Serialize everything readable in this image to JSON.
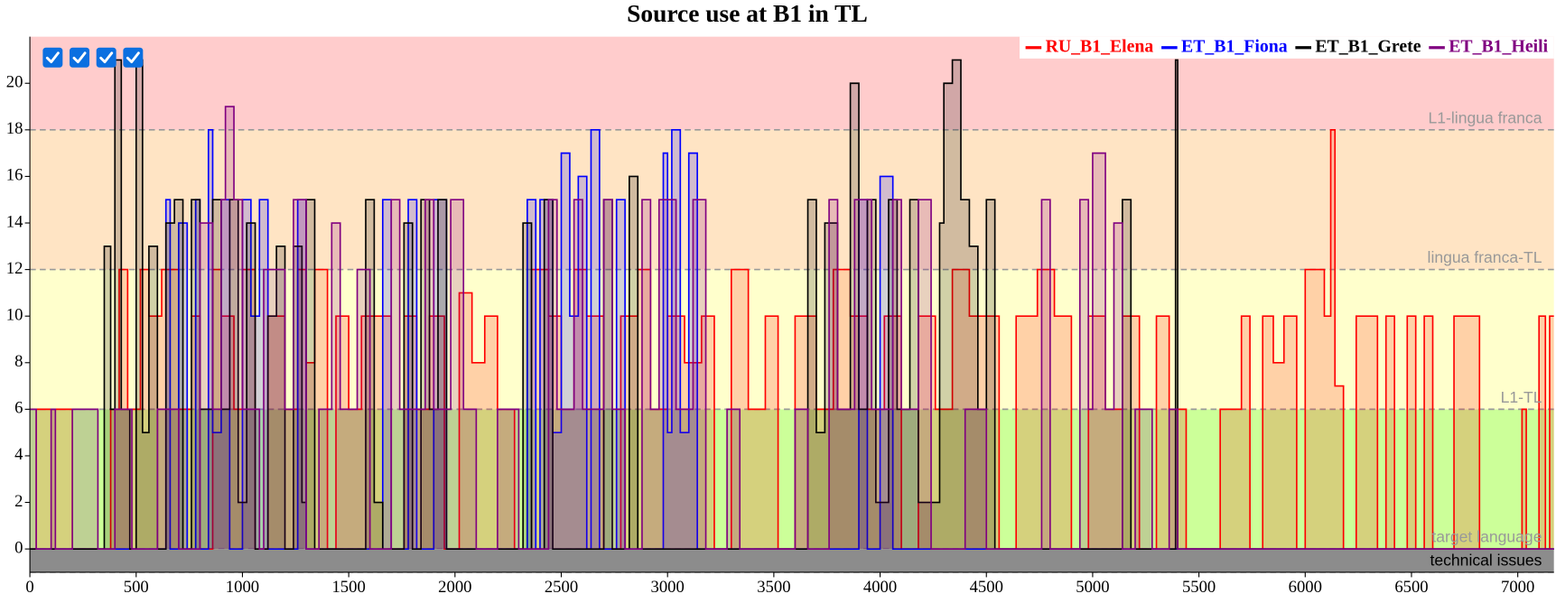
{
  "chart_data": {
    "type": "step",
    "title": "Source use at B1 in TL",
    "xlim": [
      0,
      7170
    ],
    "xticks": [
      0,
      500,
      1000,
      1500,
      2000,
      2500,
      3000,
      3500,
      4000,
      4500,
      5000,
      5500,
      6000,
      6500,
      7000
    ],
    "ylim": [
      -1,
      22
    ],
    "yticks": [
      0,
      2,
      4,
      6,
      8,
      10,
      12,
      14,
      16,
      18,
      20
    ],
    "legend": "upper right",
    "fill_opacity": 0.18,
    "bands": [
      {
        "label": "technical issues",
        "from": -1,
        "to": 0,
        "color": "#8c8c8c",
        "label_color": "#000000"
      },
      {
        "label": "target language",
        "from": 0,
        "to": 6,
        "color": "#ccff99",
        "label_color": "#999999"
      },
      {
        "label": "L1-TL",
        "from": 6,
        "to": 12,
        "color": "#ffffcc",
        "label_color": "#999999"
      },
      {
        "label": "lingua franca-TL",
        "from": 12,
        "to": 18,
        "color": "#ffe4c4",
        "label_color": "#999999"
      },
      {
        "label": "L1-lingua franca",
        "from": 18,
        "to": 22,
        "color": "#ffcccc",
        "label_color": "#999999"
      }
    ],
    "series": [
      {
        "name": "RU_B1_Elena",
        "color": "#ff0000",
        "x": [
          0,
          30,
          200,
          380,
          420,
          460,
          520,
          560,
          620,
          700,
          760,
          800,
          860,
          900,
          960,
          1000,
          1060,
          1120,
          1200,
          1260,
          1300,
          1340,
          1400,
          1440,
          1500,
          1560,
          1700,
          1760,
          1820,
          1880,
          1950,
          2020,
          2080,
          2140,
          2200,
          2280,
          2360,
          2440,
          2500,
          2560,
          2620,
          2700,
          2780,
          2860,
          2920,
          3000,
          3080,
          3160,
          3220,
          3300,
          3380,
          3460,
          3520,
          3600,
          3700,
          3780,
          3860,
          3940,
          4020,
          4100,
          4180,
          4260,
          4340,
          4420,
          4560,
          4640,
          4740,
          4820,
          4900,
          4980,
          5060,
          5140,
          5220,
          5300,
          5360,
          5440,
          5600,
          5700,
          5740,
          5800,
          5850,
          5900,
          5960,
          6000,
          6090,
          6120,
          6140,
          6180,
          6240,
          6340,
          6380,
          6420,
          6480,
          6520,
          6560,
          6600,
          6700,
          6820,
          7020,
          7040,
          7100,
          7130,
          7150
        ],
        "values": [
          0,
          6,
          0,
          6,
          12,
          6,
          12,
          10,
          12,
          6,
          10,
          0,
          12,
          10,
          6,
          12,
          0,
          10,
          6,
          12,
          8,
          12,
          0,
          10,
          6,
          10,
          0,
          10,
          6,
          10,
          0,
          11,
          8,
          10,
          6,
          0,
          12,
          10,
          6,
          12,
          10,
          0,
          10,
          12,
          6,
          10,
          8,
          10,
          0,
          12,
          6,
          10,
          0,
          10,
          6,
          12,
          10,
          6,
          10,
          0,
          10,
          6,
          12,
          10,
          0,
          10,
          12,
          10,
          0,
          10,
          6,
          10,
          0,
          10,
          6,
          0,
          6,
          10,
          0,
          10,
          8,
          10,
          0,
          12,
          10,
          18,
          7,
          0,
          10,
          0,
          10,
          0,
          10,
          0,
          10,
          0,
          10,
          0,
          6,
          0,
          10,
          0,
          10
        ]
      },
      {
        "name": "ET_B1_Fiona",
        "color": "#0000ff",
        "x": [
          0,
          640,
          660,
          700,
          740,
          780,
          800,
          840,
          860,
          900,
          940,
          1000,
          1040,
          1080,
          1120,
          1260,
          1300,
          1660,
          1700,
          1780,
          1820,
          1900,
          1960,
          2340,
          2380,
          2400,
          2460,
          2500,
          2540,
          2580,
          2620,
          2640,
          2680,
          2760,
          2800,
          2980,
          3000,
          3020,
          3060,
          3100,
          3140,
          3900,
          3940,
          4000,
          4060
        ],
        "values": [
          0,
          15,
          0,
          14,
          0,
          15,
          0,
          18,
          5,
          15,
          0,
          15,
          10,
          15,
          0,
          15,
          0,
          15,
          0,
          15,
          0,
          15,
          0,
          15,
          0,
          15,
          5,
          17,
          10,
          16,
          0,
          18,
          0,
          15,
          0,
          17,
          5,
          18,
          5,
          17,
          0,
          15,
          0,
          16,
          0
        ]
      },
      {
        "name": "ET_B1_Grete",
        "color": "#000000",
        "x": [
          0,
          350,
          380,
          400,
          430,
          470,
          500,
          530,
          560,
          600,
          640,
          680,
          720,
          760,
          800,
          860,
          900,
          940,
          980,
          1020,
          1060,
          1120,
          1160,
          1200,
          1240,
          1280,
          1300,
          1340,
          1580,
          1620,
          1660,
          1760,
          1800,
          1840,
          1880,
          1920,
          1960,
          2320,
          2360,
          2420,
          2460,
          2700,
          2740,
          2820,
          2860,
          3660,
          3700,
          3740,
          3800,
          3860,
          3900,
          3940,
          3980,
          4040,
          4080,
          4140,
          4180,
          4280,
          4300,
          4340,
          4380,
          4420,
          4460,
          4500,
          4540,
          5140,
          5180,
          5390,
          5400
        ],
        "values": [
          0,
          13,
          6,
          21,
          6,
          0,
          21,
          5,
          13,
          0,
          14,
          15,
          0,
          15,
          6,
          15,
          6,
          15,
          2,
          14,
          0,
          10,
          13,
          0,
          13,
          2,
          15,
          0,
          15,
          2,
          0,
          14,
          0,
          15,
          6,
          15,
          0,
          14,
          0,
          15,
          0,
          15,
          0,
          16,
          0,
          15,
          5,
          14,
          6,
          20,
          6,
          15,
          2,
          15,
          6,
          15,
          2,
          14,
          20,
          21,
          15,
          13,
          6,
          15,
          0,
          15,
          0,
          21,
          0
        ]
      },
      {
        "name": "ET_B1_Heili",
        "color": "#800080",
        "x": [
          0,
          30,
          100,
          120,
          200,
          320,
          400,
          480,
          600,
          700,
          800,
          860,
          900,
          920,
          960,
          1000,
          1080,
          1100,
          1200,
          1240,
          1300,
          1360,
          1420,
          1460,
          1540,
          1600,
          1700,
          1740,
          1860,
          1900,
          1980,
          2040,
          2100,
          2200,
          2300,
          2440,
          2480,
          2560,
          2600,
          2700,
          2740,
          2800,
          2880,
          2920,
          2960,
          3040,
          3120,
          3180,
          3280,
          3340,
          3600,
          3660,
          3760,
          3800,
          3880,
          3960,
          4060,
          4100,
          4180,
          4240,
          4400,
          4500,
          4760,
          4800,
          4940,
          4980,
          5000,
          5060,
          5100,
          5140,
          5200,
          5280,
          5360,
          5400
        ],
        "values": [
          6,
          0,
          6,
          0,
          6,
          0,
          6,
          0,
          6,
          0,
          14,
          6,
          15,
          19,
          15,
          6,
          0,
          12,
          6,
          15,
          0,
          6,
          14,
          6,
          12,
          0,
          15,
          6,
          15,
          6,
          15,
          6,
          0,
          6,
          0,
          15,
          6,
          15,
          6,
          15,
          6,
          0,
          15,
          6,
          15,
          6,
          15,
          0,
          6,
          0,
          6,
          0,
          15,
          6,
          15,
          6,
          15,
          6,
          15,
          0,
          6,
          0,
          15,
          0,
          15,
          6,
          17,
          6,
          14,
          0,
          6,
          0,
          6,
          0
        ]
      }
    ]
  }
}
